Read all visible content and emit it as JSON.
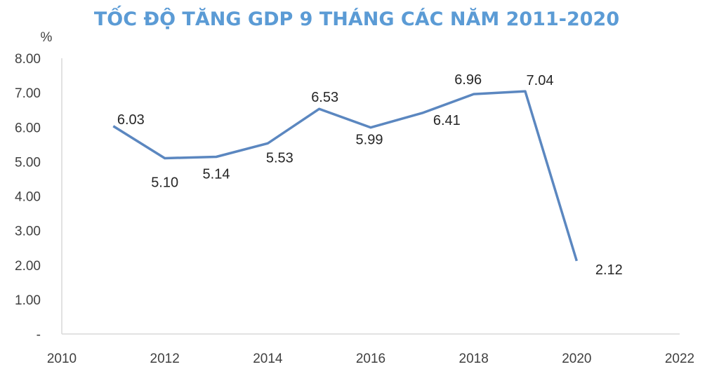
{
  "chart_data": {
    "type": "line",
    "title": "TỐC ĐỘ TĂNG GDP 9 THÁNG CÁC NĂM 2011-2020",
    "ylabel": "%",
    "xlabel": "",
    "x": [
      2011,
      2012,
      2013,
      2014,
      2015,
      2016,
      2017,
      2018,
      2019,
      2020
    ],
    "series": [
      {
        "values": [
          6.03,
          5.1,
          5.14,
          5.53,
          6.53,
          5.99,
          6.41,
          6.96,
          7.04,
          2.12
        ],
        "labels": [
          "6.03",
          "5.10",
          "5.14",
          "5.53",
          "6.53",
          "5.99",
          "6.41",
          "6.96",
          "7.04",
          "2.12"
        ]
      }
    ],
    "xlim": [
      2010,
      2022
    ],
    "ylim": [
      0,
      8
    ],
    "x_ticks": [
      "2010",
      "2012",
      "2014",
      "2016",
      "2018",
      "2020",
      "2022"
    ],
    "y_ticks": [
      "-",
      "1.00",
      "2.00",
      "3.00",
      "4.00",
      "5.00",
      "6.00",
      "7.00",
      "8.00"
    ],
    "grid": false,
    "legend": "none",
    "colors": {
      "line": "#5b87c0",
      "title": "#5b9bd5",
      "axis": "#d9d9d9"
    }
  }
}
